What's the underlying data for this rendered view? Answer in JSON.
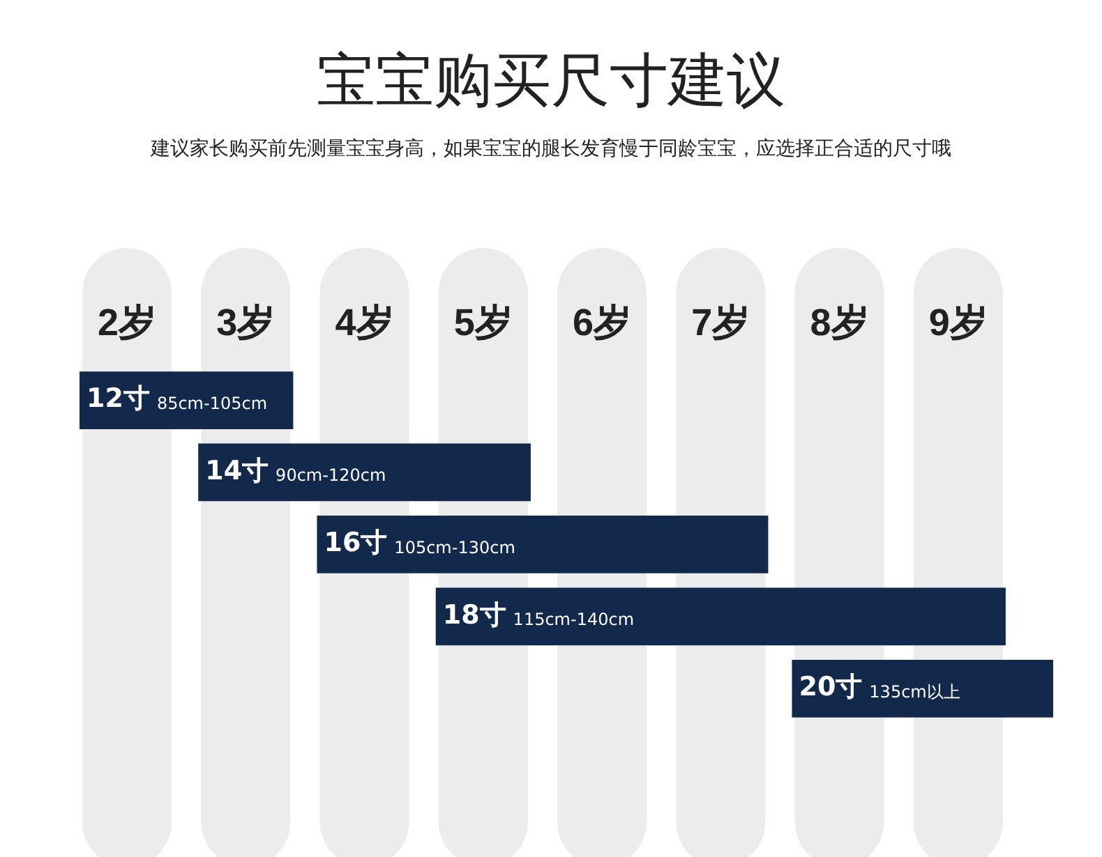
{
  "chart_data": {
    "type": "bar",
    "orientation": "horizontal",
    "title": "宝宝购买尺寸建议",
    "subtitle": "建议家长购买前先测量宝宝身高，如果宝宝的腿长发育慢于同龄宝宝，应选择正合适的尺寸哦",
    "categories": [
      "12寸",
      "14寸",
      "16寸",
      "18寸",
      "20寸"
    ],
    "base": [
      1.6,
      2.6,
      3.6,
      4.6,
      7.6
    ],
    "values": [
      1.8,
      2.8,
      3.8,
      4.8,
      2.2
    ],
    "annotations": [
      "85cm-105cm",
      "90cm-120cm",
      "105cm-130cm",
      "115cm-140cm",
      "135cm以上"
    ],
    "color": "#13294b",
    "xlim": [
      1.6,
      9.8
    ],
    "xticks": [
      {
        "value": 2,
        "label": "2岁"
      },
      {
        "value": 3,
        "label": "3岁"
      },
      {
        "value": 4,
        "label": "4岁"
      },
      {
        "value": 5,
        "label": "5岁"
      },
      {
        "value": 6,
        "label": "6岁"
      },
      {
        "value": 7,
        "label": "7岁"
      },
      {
        "value": 8,
        "label": "8岁"
      },
      {
        "value": 9,
        "label": "9岁"
      }
    ],
    "grid": "x",
    "legend": false
  }
}
